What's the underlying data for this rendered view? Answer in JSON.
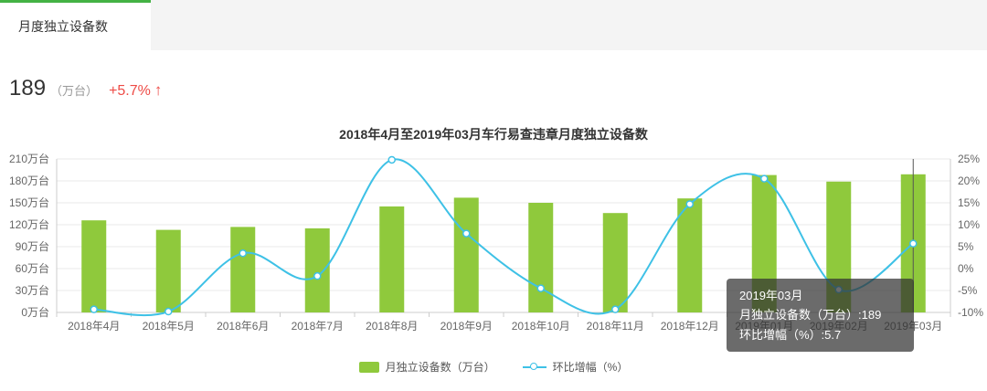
{
  "tab": {
    "label": "月度独立设备数"
  },
  "stats": {
    "value": "189",
    "unit": "（万台）",
    "delta": "+5.7%",
    "arrow": "↑"
  },
  "colors": {
    "accent_green": "#43b244",
    "bar_green": "#8fc93c",
    "line_cyan": "#3ec1e6",
    "delta_red": "#ee4b46"
  },
  "chart_data": {
    "type": "bar",
    "title": "2018年4月至2019年03月车行易查违章月度独立设备数",
    "categories": [
      "2018年4月",
      "2018年5月",
      "2018年6月",
      "2018年7月",
      "2018年8月",
      "2018年9月",
      "2018年10月",
      "2018年11月",
      "2018年12月",
      "2019年01月",
      "2019年02月",
      "2019年03月"
    ],
    "series": [
      {
        "name": "月独立设备数（万台）",
        "type": "bar",
        "color": "#8fc93c",
        "values": [
          126,
          113,
          117,
          115,
          145,
          157,
          150,
          136,
          156,
          188,
          179,
          189
        ]
      },
      {
        "name": "环比增幅（%）",
        "type": "line",
        "color": "#3ec1e6",
        "values": [
          -9.3,
          -9.8,
          3.5,
          -1.7,
          24.8,
          8.0,
          -4.5,
          -9.3,
          14.7,
          20.5,
          -4.8,
          5.7
        ]
      }
    ],
    "left_axis": {
      "min": 0,
      "max": 210,
      "step": 30,
      "suffix": "万台"
    },
    "right_axis": {
      "min": -10,
      "max": 25,
      "step": 5,
      "suffix": "%"
    },
    "grid": true,
    "legend_position": "bottom"
  },
  "tooltip": {
    "title": "2019年03月",
    "line1": "月独立设备数（万台）:189",
    "line2": "环比增幅（%）:5.7"
  }
}
